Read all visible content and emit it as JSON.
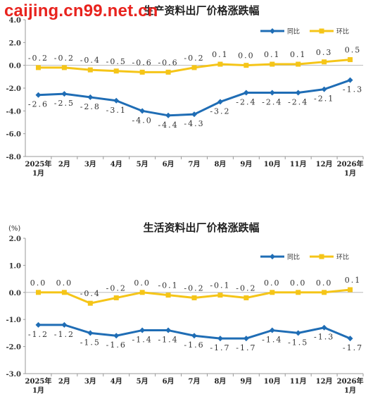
{
  "watermark": "caijing.cn99.net.cn",
  "chart_data": [
    {
      "type": "line",
      "title": "生产资料出厂价格涨跌幅",
      "ylabel": "",
      "ylim": [
        -8.0,
        4.0
      ],
      "yticks": [
        "4.0",
        "2.0",
        "0.0",
        "-2.0",
        "-4.0",
        "-6.0",
        "-8.0"
      ],
      "ytick_values": [
        4,
        2,
        0,
        -2,
        -4,
        -6,
        -8
      ],
      "categories": [
        "2025年\n1月",
        "2月",
        "3月",
        "4月",
        "5月",
        "6月",
        "7月",
        "8月",
        "9月",
        "10月",
        "11月",
        "12月",
        "2026年\n1月"
      ],
      "legend_position": "top-right",
      "series": [
        {
          "name": "同比",
          "color": "#1f6db5",
          "values": [
            -2.6,
            -2.5,
            -2.8,
            -3.1,
            -4.0,
            -4.4,
            -4.3,
            -3.2,
            -2.4,
            -2.4,
            -2.4,
            -2.1,
            -1.3
          ],
          "labels": [
            "-2.6",
            "-2.5",
            "-2.8",
            "-3.1",
            "-4.0",
            "-4.4",
            "-4.3",
            "-3.2",
            "-2.4",
            "-2.4",
            "-2.4",
            "-2.1",
            "-1.3"
          ]
        },
        {
          "name": "环比",
          "color": "#f5c518",
          "values": [
            -0.2,
            -0.2,
            -0.4,
            -0.5,
            -0.6,
            -0.6,
            -0.2,
            0.1,
            0.0,
            0.1,
            0.1,
            0.3,
            0.5
          ],
          "labels": [
            "-0.2",
            "-0.2",
            "-0.4",
            "-0.5",
            "-0.6",
            "-0.6",
            "-0.2",
            "0.1",
            "0.0",
            "0.1",
            "0.1",
            "0.3",
            "0.5"
          ]
        }
      ]
    },
    {
      "type": "line",
      "title": "生活资料出厂价格涨跌幅",
      "ylabel": "(%)",
      "ylim": [
        -3.0,
        2.0
      ],
      "yticks": [
        "2.0",
        "1.0",
        "0.0",
        "-1.0",
        "-2.0",
        "-3.0"
      ],
      "ytick_values": [
        2,
        1,
        0,
        -1,
        -2,
        -3
      ],
      "categories": [
        "2025年\n1月",
        "2月",
        "3月",
        "4月",
        "5月",
        "6月",
        "7月",
        "8月",
        "9月",
        "10月",
        "11月",
        "12月",
        "2026年\n1月"
      ],
      "legend_position": "top-right",
      "series": [
        {
          "name": "同比",
          "color": "#1f6db5",
          "values": [
            -1.2,
            -1.2,
            -1.5,
            -1.6,
            -1.4,
            -1.4,
            -1.6,
            -1.7,
            -1.7,
            -1.4,
            -1.5,
            -1.3,
            -1.7
          ],
          "labels": [
            "-1.2",
            "-1.2",
            "-1.5",
            "-1.6",
            "-1.4",
            "-1.4",
            "-1.6",
            "-1.7",
            "-1.7",
            "-1.4",
            "-1.5",
            "-1.3",
            "-1.7"
          ]
        },
        {
          "name": "环比",
          "color": "#f5c518",
          "values": [
            0.0,
            0.0,
            -0.4,
            -0.2,
            0.0,
            -0.1,
            -0.2,
            -0.1,
            -0.2,
            0.0,
            0.0,
            0.0,
            0.1
          ],
          "labels": [
            "0.0",
            "0.0",
            "-0.4",
            "-0.2",
            "0.0",
            "-0.1",
            "-0.2",
            "-0.1",
            "-0.2",
            "0.0",
            "0.0",
            "0.0",
            "0.1"
          ]
        }
      ]
    }
  ]
}
